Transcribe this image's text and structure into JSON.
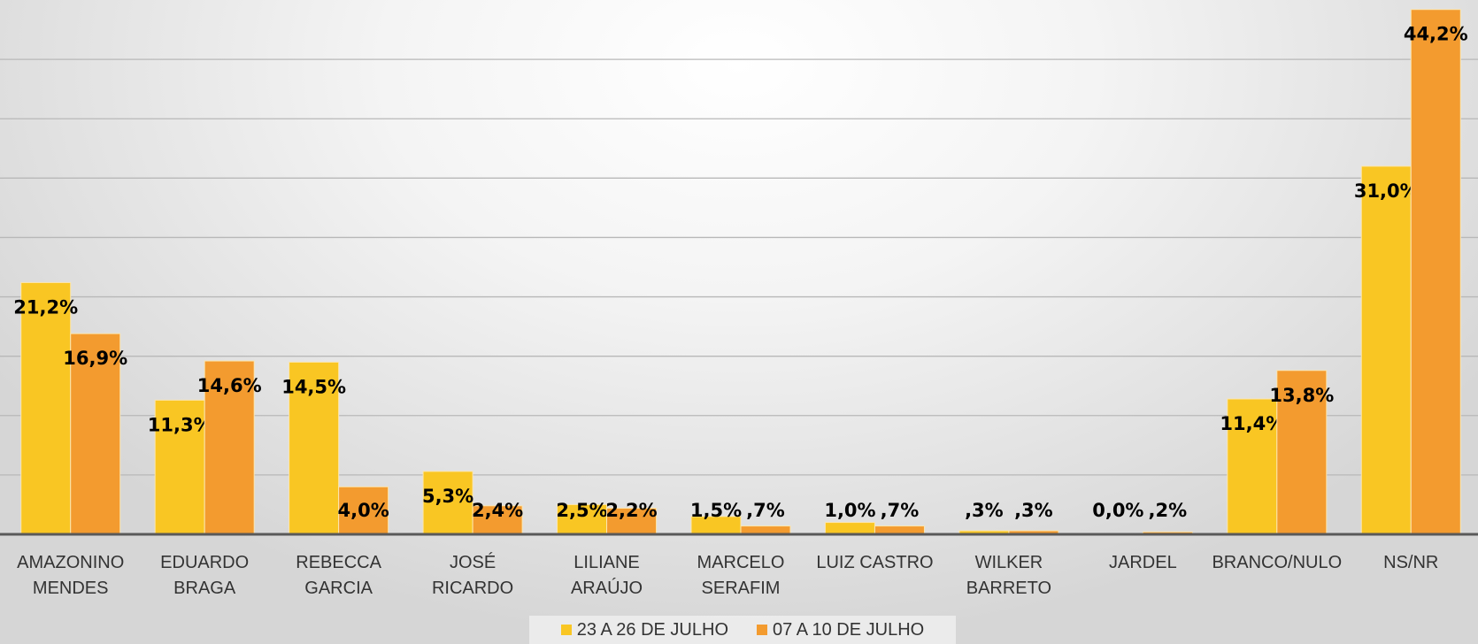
{
  "chart_data": {
    "type": "bar",
    "categories": [
      "AMAZONINO\nMENDES",
      "EDUARDO\nBRAGA",
      "REBECCA\nGARCIA",
      "JOSÉ RICARDO",
      "LILIANE\nARAÚJO",
      "MARCELO\nSERAFIM",
      "LUIZ CASTRO",
      "WILKER\nBARRETO",
      "JARDEL",
      "BRANCO/NULO",
      "NS/NR"
    ],
    "series": [
      {
        "name": "23 A 26 DE JULHO",
        "color": "#f9c623",
        "values": [
          21.2,
          11.3,
          14.5,
          5.3,
          2.5,
          1.5,
          1.0,
          0.3,
          0.0,
          11.4,
          31.0
        ],
        "value_labels": [
          "21,2%",
          "11,3%",
          "14,5%",
          "5,3%",
          "2,5%",
          "1,5%",
          "1,0%",
          ",3%",
          "0,0%",
          "11,4%",
          "31,0%"
        ]
      },
      {
        "name": "07 A 10 DE JULHO",
        "color": "#f39b2f",
        "values": [
          16.9,
          14.6,
          4.0,
          2.4,
          2.2,
          0.7,
          0.7,
          0.3,
          0.2,
          13.8,
          44.2
        ],
        "value_labels": [
          "16,9%",
          "14,6%",
          "4,0%",
          "2,4%",
          "2,2%",
          ",7%",
          ",7%",
          ",3%",
          ",2%",
          "13,8%",
          "44,2%"
        ]
      }
    ],
    "ylim": [
      0,
      45
    ],
    "yticks": [
      0,
      5,
      10,
      15,
      20,
      25,
      30,
      35,
      40
    ],
    "grid": true,
    "legend": "bottom"
  }
}
